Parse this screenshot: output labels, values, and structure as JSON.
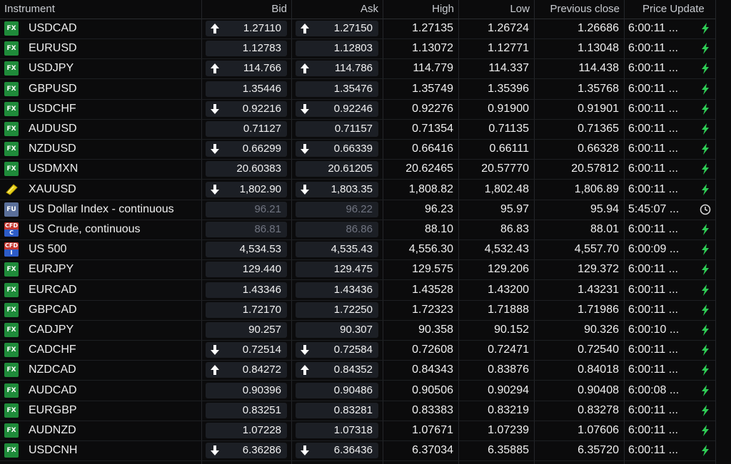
{
  "headers": {
    "instrument": "Instrument",
    "bid": "Bid",
    "ask": "Ask",
    "high": "High",
    "low": "Low",
    "prev_close": "Previous close",
    "price_update": "Price Update"
  },
  "colors": {
    "up_arrow": "#ffffff",
    "bolt": "#2ecc55",
    "fx_badge": "#1f8b3a"
  },
  "rows": [
    {
      "badge": "FX",
      "type": "fx",
      "name": "USDCAD",
      "bid": "1.27110",
      "ask": "1.27150",
      "high": "1.27135",
      "low": "1.26724",
      "prev": "1.26686",
      "time": "6:00:11 ...",
      "dir": "up",
      "status": "bolt-icon",
      "dim": false
    },
    {
      "badge": "FX",
      "type": "fx",
      "name": "EURUSD",
      "bid": "1.12783",
      "ask": "1.12803",
      "high": "1.13072",
      "low": "1.12771",
      "prev": "1.13048",
      "time": "6:00:11 ...",
      "dir": "none",
      "status": "bolt-icon",
      "dim": false
    },
    {
      "badge": "FX",
      "type": "fx",
      "name": "USDJPY",
      "bid": "114.766",
      "ask": "114.786",
      "high": "114.779",
      "low": "114.337",
      "prev": "114.438",
      "time": "6:00:11 ...",
      "dir": "up",
      "status": "bolt-icon",
      "dim": false
    },
    {
      "badge": "FX",
      "type": "fx",
      "name": "GBPUSD",
      "bid": "1.35446",
      "ask": "1.35476",
      "high": "1.35749",
      "low": "1.35396",
      "prev": "1.35768",
      "time": "6:00:11 ...",
      "dir": "none",
      "status": "bolt-icon",
      "dim": false
    },
    {
      "badge": "FX",
      "type": "fx",
      "name": "USDCHF",
      "bid": "0.92216",
      "ask": "0.92246",
      "high": "0.92276",
      "low": "0.91900",
      "prev": "0.91901",
      "time": "6:00:11 ...",
      "dir": "down",
      "status": "bolt-icon",
      "dim": false
    },
    {
      "badge": "FX",
      "type": "fx",
      "name": "AUDUSD",
      "bid": "0.71127",
      "ask": "0.71157",
      "high": "0.71354",
      "low": "0.71135",
      "prev": "0.71365",
      "time": "6:00:11 ...",
      "dir": "none",
      "status": "bolt-icon",
      "dim": false
    },
    {
      "badge": "FX",
      "type": "fx",
      "name": "NZDUSD",
      "bid": "0.66299",
      "ask": "0.66339",
      "high": "0.66416",
      "low": "0.66111",
      "prev": "0.66328",
      "time": "6:00:11 ...",
      "dir": "down",
      "status": "bolt-icon",
      "dim": false
    },
    {
      "badge": "FX",
      "type": "fx",
      "name": "USDMXN",
      "bid": "20.60383",
      "ask": "20.61205",
      "high": "20.62465",
      "low": "20.57770",
      "prev": "20.57812",
      "time": "6:00:11 ...",
      "dir": "none",
      "status": "bolt-icon",
      "dim": false
    },
    {
      "badge": "",
      "type": "gold",
      "name": "XAUUSD",
      "bid": "1,802.90",
      "ask": "1,803.35",
      "high": "1,808.82",
      "low": "1,802.48",
      "prev": "1,806.89",
      "time": "6:00:11 ...",
      "dir": "down",
      "status": "bolt-icon",
      "dim": false
    },
    {
      "badge": "FU",
      "type": "fu",
      "name": "US Dollar Index - continuous",
      "bid": "96.21",
      "ask": "96.22",
      "high": "96.23",
      "low": "95.97",
      "prev": "95.94",
      "time": "5:45:07 ...",
      "dir": "none",
      "status": "clock-icon",
      "dim": true
    },
    {
      "badge": "CFD C",
      "type": "cfd",
      "name": "US Crude, continuous",
      "bid": "86.81",
      "ask": "86.86",
      "high": "88.10",
      "low": "86.83",
      "prev": "88.01",
      "time": "6:00:11 ...",
      "dir": "none",
      "status": "bolt-icon",
      "dim": true
    },
    {
      "badge": "CFD I",
      "type": "cfd",
      "name": "US 500",
      "bid": "4,534.53",
      "ask": "4,535.43",
      "high": "4,556.30",
      "low": "4,532.43",
      "prev": "4,557.70",
      "time": "6:00:09 ...",
      "dir": "none",
      "status": "bolt-icon",
      "dim": false
    },
    {
      "badge": "FX",
      "type": "fx",
      "name": "EURJPY",
      "bid": "129.440",
      "ask": "129.475",
      "high": "129.575",
      "low": "129.206",
      "prev": "129.372",
      "time": "6:00:11 ...",
      "dir": "none",
      "status": "bolt-icon",
      "dim": false
    },
    {
      "badge": "FX",
      "type": "fx",
      "name": "EURCAD",
      "bid": "1.43346",
      "ask": "1.43436",
      "high": "1.43528",
      "low": "1.43200",
      "prev": "1.43231",
      "time": "6:00:11 ...",
      "dir": "none",
      "status": "bolt-icon",
      "dim": false
    },
    {
      "badge": "FX",
      "type": "fx",
      "name": "GBPCAD",
      "bid": "1.72170",
      "ask": "1.72250",
      "high": "1.72323",
      "low": "1.71888",
      "prev": "1.71986",
      "time": "6:00:11 ...",
      "dir": "none",
      "status": "bolt-icon",
      "dim": false
    },
    {
      "badge": "FX",
      "type": "fx",
      "name": "CADJPY",
      "bid": "90.257",
      "ask": "90.307",
      "high": "90.358",
      "low": "90.152",
      "prev": "90.326",
      "time": "6:00:10 ...",
      "dir": "none",
      "status": "bolt-icon",
      "dim": false
    },
    {
      "badge": "FX",
      "type": "fx",
      "name": "CADCHF",
      "bid": "0.72514",
      "ask": "0.72584",
      "high": "0.72608",
      "low": "0.72471",
      "prev": "0.72540",
      "time": "6:00:11 ...",
      "dir": "down",
      "status": "bolt-icon",
      "dim": false
    },
    {
      "badge": "FX",
      "type": "fx",
      "name": "NZDCAD",
      "bid": "0.84272",
      "ask": "0.84352",
      "high": "0.84343",
      "low": "0.83876",
      "prev": "0.84018",
      "time": "6:00:11 ...",
      "dir": "up",
      "status": "bolt-icon",
      "dim": false
    },
    {
      "badge": "FX",
      "type": "fx",
      "name": "AUDCAD",
      "bid": "0.90396",
      "ask": "0.90486",
      "high": "0.90506",
      "low": "0.90294",
      "prev": "0.90408",
      "time": "6:00:08 ...",
      "dir": "none",
      "status": "bolt-icon",
      "dim": false
    },
    {
      "badge": "FX",
      "type": "fx",
      "name": "EURGBP",
      "bid": "0.83251",
      "ask": "0.83281",
      "high": "0.83383",
      "low": "0.83219",
      "prev": "0.83278",
      "time": "6:00:11 ...",
      "dir": "none",
      "status": "bolt-icon",
      "dim": false
    },
    {
      "badge": "FX",
      "type": "fx",
      "name": "AUDNZD",
      "bid": "1.07228",
      "ask": "1.07318",
      "high": "1.07671",
      "low": "1.07239",
      "prev": "1.07606",
      "time": "6:00:11 ...",
      "dir": "none",
      "status": "bolt-icon",
      "dim": false
    },
    {
      "badge": "FX",
      "type": "fx",
      "name": "USDCNH",
      "bid": "6.36286",
      "ask": "6.36436",
      "high": "6.37034",
      "low": "6.35885",
      "prev": "6.35720",
      "time": "6:00:11 ...",
      "dir": "down",
      "status": "bolt-icon",
      "dim": false
    }
  ]
}
